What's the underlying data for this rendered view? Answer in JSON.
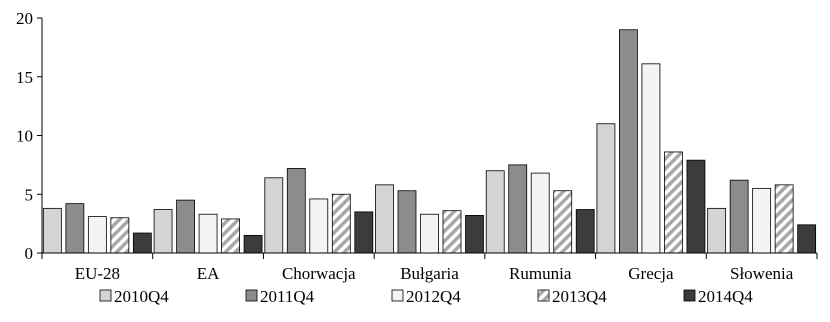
{
  "chart_data": {
    "type": "bar",
    "title": "",
    "xlabel": "",
    "ylabel": "",
    "ylim": [
      0,
      20
    ],
    "yticks": [
      0,
      5,
      10,
      15,
      20
    ],
    "grid": false,
    "legend_position": "bottom",
    "categories": [
      "EU-28",
      "EA",
      "Chorwacja",
      "Bułgaria",
      "Rumunia",
      "Grecja",
      "Słowenia"
    ],
    "series": [
      {
        "name": "2010Q4",
        "values": [
          3.8,
          3.7,
          6.4,
          5.8,
          7.0,
          11.0,
          3.8
        ],
        "color": "#d4d4d4",
        "pattern": "solid"
      },
      {
        "name": "2011Q4",
        "values": [
          4.2,
          4.5,
          7.2,
          5.3,
          7.5,
          19.0,
          6.2
        ],
        "color": "#8c8c8c",
        "pattern": "solid"
      },
      {
        "name": "2012Q4",
        "values": [
          3.1,
          3.3,
          4.6,
          3.3,
          6.8,
          16.1,
          5.5
        ],
        "color": "#f4f4f4",
        "pattern": "solid"
      },
      {
        "name": "2013Q4",
        "values": [
          3.0,
          2.9,
          5.0,
          3.6,
          5.3,
          8.6,
          5.8
        ],
        "color": "#bdbdbd",
        "pattern": "diagonal-stripes"
      },
      {
        "name": "2014Q4",
        "values": [
          1.7,
          1.5,
          3.5,
          3.2,
          3.7,
          7.9,
          2.4
        ],
        "color": "#3c3c3c",
        "pattern": "solid"
      }
    ]
  }
}
